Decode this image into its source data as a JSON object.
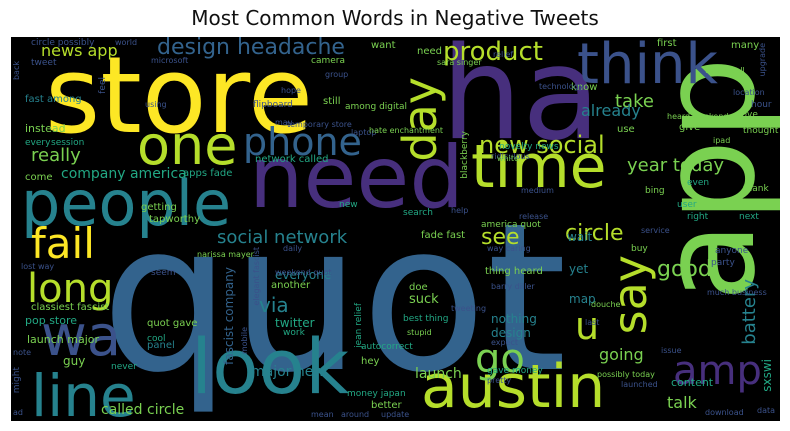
{
  "title": "Most Common Words in Negative Tweets",
  "palette": {
    "background": "#000000",
    "blue": "#33638d",
    "indigo": "#3b528b",
    "purple": "#472f7d",
    "teal": "#26828e",
    "green": "#22a884",
    "lime": "#7ad151",
    "yellow": "#fde725",
    "yellowgreen": "#b5de2b"
  },
  "words": [
    {
      "text": "quot"
    },
    {
      "text": "app"
    },
    {
      "text": "store"
    },
    {
      "text": "ha"
    },
    {
      "text": "need"
    },
    {
      "text": "people"
    },
    {
      "text": "line"
    },
    {
      "text": "look"
    },
    {
      "text": "austin"
    },
    {
      "text": "think"
    },
    {
      "text": "time"
    },
    {
      "text": "one"
    },
    {
      "text": "phone"
    },
    {
      "text": "wa"
    },
    {
      "text": "day"
    },
    {
      "text": "say"
    },
    {
      "text": "fail"
    },
    {
      "text": "long"
    },
    {
      "text": "go"
    },
    {
      "text": "amp"
    },
    {
      "text": "u"
    },
    {
      "text": "design headache"
    },
    {
      "text": "product"
    },
    {
      "text": "new social"
    },
    {
      "text": "social network"
    },
    {
      "text": "circle"
    },
    {
      "text": "news app"
    },
    {
      "text": "see"
    },
    {
      "text": "good"
    },
    {
      "text": "really"
    },
    {
      "text": "year today"
    },
    {
      "text": "take"
    },
    {
      "text": "already"
    },
    {
      "text": "battery"
    },
    {
      "text": "company america"
    },
    {
      "text": "via"
    },
    {
      "text": "talk"
    },
    {
      "text": "going"
    },
    {
      "text": "major new"
    },
    {
      "text": "called circle"
    },
    {
      "text": "launch"
    },
    {
      "text": "fascist company"
    },
    {
      "text": "pop store"
    },
    {
      "text": "launch major"
    },
    {
      "text": "classiest fascist"
    },
    {
      "text": "guy"
    },
    {
      "text": "twitter"
    },
    {
      "text": "everyone"
    },
    {
      "text": "network called"
    },
    {
      "text": "apps fade"
    },
    {
      "text": "fast among"
    },
    {
      "text": "instead"
    },
    {
      "text": "getting"
    },
    {
      "text": "tapworthy"
    },
    {
      "text": "quot gave"
    },
    {
      "text": "panel"
    },
    {
      "text": "fade fast"
    },
    {
      "text": "thing heard"
    },
    {
      "text": "suck"
    },
    {
      "text": "doe"
    },
    {
      "text": "nothing"
    },
    {
      "text": "design"
    },
    {
      "text": "yet"
    },
    {
      "text": "map"
    },
    {
      "text": "wait"
    },
    {
      "text": "content"
    },
    {
      "text": "sxswi"
    },
    {
      "text": "still"
    },
    {
      "text": "many"
    },
    {
      "text": "first"
    },
    {
      "text": "want"
    },
    {
      "text": "need"
    },
    {
      "text": "know"
    },
    {
      "text": "use"
    },
    {
      "text": "give"
    },
    {
      "text": "another"
    },
    {
      "text": "hey"
    },
    {
      "text": "better"
    },
    {
      "text": "come"
    },
    {
      "text": "every"
    },
    {
      "text": "session"
    },
    {
      "text": "feel"
    },
    {
      "text": "world"
    },
    {
      "text": "tweet"
    },
    {
      "text": "circle possibly"
    },
    {
      "text": "never"
    },
    {
      "text": "cool"
    },
    {
      "text": "might"
    },
    {
      "text": "mobile"
    },
    {
      "text": "work"
    },
    {
      "text": "blackberry"
    },
    {
      "text": "america quot"
    },
    {
      "text": "new"
    },
    {
      "text": "search"
    },
    {
      "text": "help"
    },
    {
      "text": "service"
    },
    {
      "text": "buy"
    },
    {
      "text": "user"
    },
    {
      "text": "right"
    },
    {
      "text": "even"
    },
    {
      "text": "next"
    },
    {
      "text": "thank"
    },
    {
      "text": "bing"
    },
    {
      "text": "anyone"
    },
    {
      "text": "party"
    },
    {
      "text": "hour"
    },
    {
      "text": "love"
    },
    {
      "text": "thought"
    },
    {
      "text": "heard weekend"
    },
    {
      "text": "location"
    },
    {
      "text": "tablet call"
    },
    {
      "text": "upgrade"
    },
    {
      "text": "camera"
    },
    {
      "text": "group"
    },
    {
      "text": "microsoft"
    },
    {
      "text": "flipboard"
    },
    {
      "text": "temporary store"
    },
    {
      "text": "among digital"
    },
    {
      "text": "novelty news"
    },
    {
      "text": "ridiculous"
    },
    {
      "text": "white"
    },
    {
      "text": "medium"
    },
    {
      "text": "release"
    },
    {
      "text": "way caring"
    },
    {
      "text": "narissa mayer"
    },
    {
      "text": "elegant fascist"
    },
    {
      "text": "jean relief"
    },
    {
      "text": "best thing"
    },
    {
      "text": "barry diller"
    },
    {
      "text": "tweeting"
    },
    {
      "text": "gave money"
    },
    {
      "text": "money japan"
    },
    {
      "text": "autocorrect"
    },
    {
      "text": "possibly today"
    },
    {
      "text": "douche"
    },
    {
      "text": "launched"
    },
    {
      "text": "issue"
    },
    {
      "text": "laptop"
    },
    {
      "text": "weekend quot"
    },
    {
      "text": "expect"
    },
    {
      "text": "stupid"
    },
    {
      "text": "pretty"
    },
    {
      "text": "last"
    },
    {
      "text": "download"
    },
    {
      "text": "data"
    },
    {
      "text": "update"
    },
    {
      "text": "around"
    },
    {
      "text": "mean"
    },
    {
      "text": "daily"
    },
    {
      "text": "may"
    },
    {
      "text": "hope"
    },
    {
      "text": "using"
    },
    {
      "text": "back"
    },
    {
      "text": "lost way"
    },
    {
      "text": "note"
    },
    {
      "text": "ad"
    },
    {
      "text": "technology"
    },
    {
      "text": "relief"
    },
    {
      "text": "much business"
    },
    {
      "text": "ipad"
    },
    {
      "text": "seem"
    },
    {
      "text": "sara singer"
    },
    {
      "text": "hate enchantment"
    }
  ]
}
